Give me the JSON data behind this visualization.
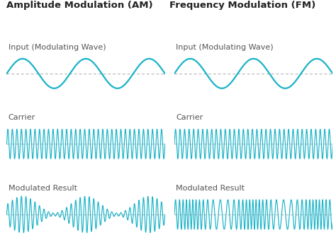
{
  "title_am": "Amplitude Modulation (AM)",
  "title_fm": "Frequency Modulation (FM)",
  "label_input": "Input (Modulating Wave)",
  "label_carrier": "Carrier",
  "label_modulated": "Modulated Result",
  "wave_color": "#1ab3c8",
  "dash_color": "#aaaaaa",
  "title_color": "#222222",
  "label_color": "#555555",
  "bg_color": "#ffffff",
  "title_fontsize": 9.5,
  "label_fontsize": 8,
  "carrier_freq": 14,
  "mod_freq": 1.0,
  "n_points": 2000,
  "kf": 6.0
}
